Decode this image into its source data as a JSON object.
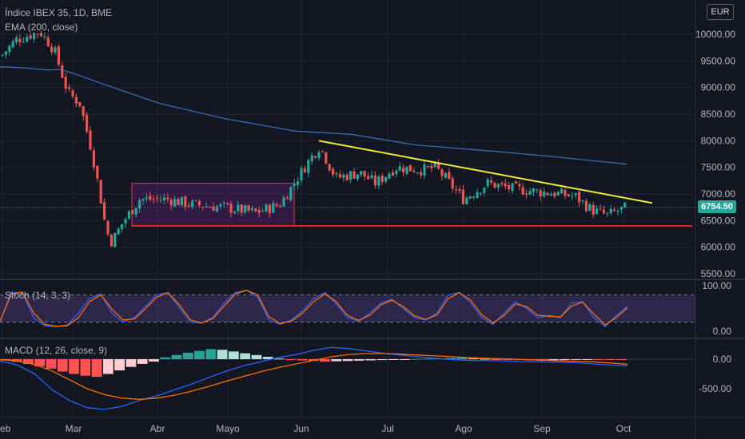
{
  "header": {
    "symbol": "Índice IBEX 35, 1D, BME",
    "ema_label": "EMA (200, close)"
  },
  "currency": "EUR",
  "last_price": "6754.50",
  "colors": {
    "background": "#131722",
    "grid": "#1f2433",
    "up": "#26a69a",
    "down": "#ef5350",
    "ema": "#3d6ab0",
    "trend_line": "#f0e93c",
    "support_line": "#e02424",
    "range_box": "#9c27b0",
    "stoch_k": "#2962ff",
    "stoch_d": "#ff6d00",
    "macd": "#2962ff",
    "signal": "#ff6d00",
    "hist_pos_strong": "#26a69a",
    "hist_pos_weak": "#b2dfdb",
    "hist_neg_strong": "#ff5252",
    "hist_neg_weak": "#ffcdd2"
  },
  "chart_data": [
    {
      "type": "candlestick",
      "panel": "price",
      "title": "Índice IBEX 35, 1D, BME",
      "x_ticks": [
        "Feb",
        "Mar",
        "Abr",
        "Mayo",
        "Jun",
        "Jul",
        "Ago",
        "Sep",
        "Oct"
      ],
      "y_ticks": [
        "10000.00",
        "9500.00",
        "9000.00",
        "8500.00",
        "8000.00",
        "7500.00",
        "7000.00",
        "6500.00",
        "6000.00",
        "5500.00"
      ],
      "y_range": [
        5400,
        10500
      ],
      "last_close": 6754.5,
      "ema_200": {
        "name": "EMA (200, close)",
        "x": [
          0,
          30,
          60,
          90,
          120,
          150,
          180,
          210,
          240
        ],
        "y": [
          9390,
          9330,
          9060,
          8700,
          8260,
          8160,
          7980,
          7790,
          7560
        ]
      },
      "trend_line": {
        "x": [
          0,
          52
        ],
        "y": [
          8000,
          6800
        ]
      },
      "support_line": {
        "x": [
          0,
          52
        ],
        "y": [
          6400,
          6400
        ]
      },
      "range_box": {
        "x": [
          0,
          4
        ],
        "y": [
          6400,
          7200
        ]
      }
    },
    {
      "type": "line",
      "panel": "stochastic",
      "label": "Stoch (14, 3, 3)",
      "y_ticks": [
        "100.00",
        "0.00"
      ],
      "y_range": [
        0,
        100
      ],
      "bands": [
        20,
        80
      ],
      "series": [
        {
          "values": [
            20,
            86,
            84,
            30,
            12,
            10,
            14,
            40,
            72,
            82,
            40,
            20,
            30,
            55,
            80,
            85,
            52,
            20,
            18,
            30,
            62,
            85,
            90,
            75,
            25,
            15,
            25,
            45,
            72,
            85,
            60,
            30,
            22,
            40,
            62,
            70,
            50,
            30,
            25,
            40,
            80,
            85,
            62,
            30,
            15,
            40,
            65,
            50,
            30,
            35,
            30,
            62,
            65,
            30,
            10,
            35,
            55
          ]
        },
        {
          "values": [
            22,
            82,
            86,
            40,
            15,
            11,
            12,
            30,
            65,
            80,
            48,
            25,
            27,
            50,
            75,
            85,
            58,
            25,
            18,
            28,
            55,
            82,
            90,
            80,
            32,
            17,
            22,
            40,
            65,
            82,
            65,
            35,
            24,
            35,
            58,
            68,
            54,
            34,
            26,
            36,
            72,
            85,
            68,
            36,
            18,
            35,
            60,
            54,
            35,
            33,
            31,
            55,
            64,
            38,
            14,
            30,
            52
          ]
        }
      ]
    },
    {
      "type": "line",
      "panel": "macd",
      "label": "MACD (12, 26, close, 9)",
      "y_ticks": [
        "0.00",
        "-500.00"
      ],
      "y_range": [
        -800,
        250
      ],
      "series": [
        {
          "values": [
            -30,
            -100,
            -250,
            -520,
            -700,
            -820,
            -850,
            -800,
            -700,
            -620,
            -520,
            -420,
            -310,
            -200,
            -110,
            -40,
            30,
            80,
            150,
            200,
            180,
            140,
            100,
            70,
            40,
            15,
            -10,
            -20,
            -25,
            -30,
            -40,
            -45,
            -50,
            -60,
            -80,
            -100,
            -110
          ]
        },
        {
          "values": [
            -10,
            -30,
            -90,
            -200,
            -350,
            -500,
            -600,
            -660,
            -680,
            -660,
            -610,
            -540,
            -460,
            -370,
            -290,
            -210,
            -140,
            -80,
            -20,
            40,
            80,
            95,
            95,
            85,
            70,
            55,
            40,
            25,
            15,
            5,
            -5,
            -15,
            -25,
            -35,
            -45,
            -65,
            -85
          ]
        }
      ],
      "histogram": [
        -20,
        -45,
        -80,
        -120,
        -160,
        -210,
        -250,
        -280,
        -300,
        -250,
        -190,
        -130,
        -80,
        -40,
        30,
        70,
        110,
        140,
        170,
        160,
        130,
        100,
        70,
        40,
        10,
        -10,
        -20,
        -30,
        -40,
        -35,
        -30,
        -25,
        -20,
        -15,
        -10,
        -5,
        5,
        10,
        15,
        20,
        25,
        15,
        5,
        -5,
        -10,
        -15,
        -20,
        -25,
        -20,
        -15,
        -10,
        -5,
        -5,
        -10,
        -15
      ]
    }
  ]
}
